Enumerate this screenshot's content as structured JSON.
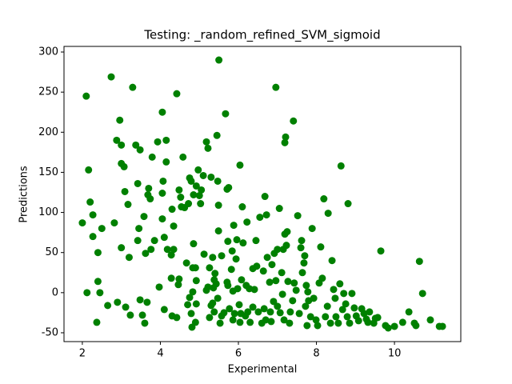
{
  "chart_data": {
    "type": "scatter",
    "title": "Testing: _random_refined_SVM_sigmoid",
    "x_label": "Experimental",
    "y_label": "Predictions",
    "color": "#008000",
    "grid": false,
    "xlim": [
      1.53,
      11.7
    ],
    "ylim": [
      -61,
      307
    ],
    "xticks": [
      2,
      4,
      6,
      8,
      10
    ],
    "yticks": [
      -50,
      0,
      50,
      100,
      150,
      200,
      250,
      300
    ],
    "x": [
      2.0,
      2.1,
      2.16,
      2.2,
      2.27,
      2.27,
      2.12,
      2.4,
      2.4,
      2.37,
      2.45,
      2.5,
      2.65,
      2.74,
      2.82,
      2.88,
      2.9,
      2.96,
      3.0,
      3.0,
      3.07,
      3.0,
      3.09,
      3.11,
      3.17,
      3.23,
      3.2,
      3.29,
      3.37,
      3.42,
      3.48,
      3.48,
      3.42,
      3.45,
      3.54,
      3.58,
      3.6,
      3.62,
      3.68,
      3.74,
      3.66,
      3.7,
      3.76,
      3.79,
      3.85,
      3.93,
      3.97,
      4.05,
      4.05,
      4.05,
      4.07,
      4.1,
      4.1,
      4.15,
      4.18,
      4.15,
      4.28,
      4.3,
      4.28,
      4.3,
      4.34,
      4.34,
      4.42,
      4.42,
      4.48,
      4.52,
      4.46,
      4.48,
      4.54,
      4.58,
      4.62,
      4.67,
      4.7,
      4.75,
      4.72,
      4.79,
      4.81,
      4.79,
      4.75,
      4.83,
      4.85,
      4.85,
      4.83,
      4.92,
      4.92,
      4.9,
      4.9,
      4.92,
      4.97,
      5.0,
      5.03,
      5.05,
      5.1,
      5.12,
      5.18,
      5.18,
      5.22,
      5.22,
      5.26,
      5.26,
      5.3,
      5.3,
      5.34,
      5.34,
      5.36,
      5.38,
      5.38,
      5.4,
      5.43,
      5.45,
      5.47,
      5.47,
      5.49,
      5.49,
      5.5,
      5.53,
      5.57,
      5.57,
      5.63,
      5.67,
      5.71,
      5.71,
      5.73,
      5.73,
      5.75,
      5.77,
      5.82,
      5.84,
      5.86,
      5.88,
      5.86,
      5.9,
      5.94,
      5.96,
      5.98,
      6.02,
      6.04,
      6.04,
      6.06,
      6.08,
      6.1,
      6.12,
      6.18,
      6.2,
      6.22,
      6.24,
      6.28,
      6.3,
      6.37,
      6.37,
      6.41,
      6.45,
      6.47,
      6.51,
      6.55,
      6.6,
      6.64,
      6.66,
      6.68,
      6.7,
      6.72,
      6.74,
      6.8,
      6.82,
      6.84,
      6.86,
      6.9,
      6.92,
      6.96,
      6.96,
      7.0,
      7.0,
      7.05,
      7.07,
      7.11,
      7.13,
      7.15,
      7.17,
      7.19,
      7.19,
      7.21,
      7.23,
      7.25,
      7.27,
      7.31,
      7.33,
      7.39,
      7.41,
      7.43,
      7.48,
      7.52,
      7.56,
      7.6,
      7.62,
      7.64,
      7.68,
      7.7,
      7.72,
      7.74,
      7.76,
      7.78,
      7.8,
      7.85,
      7.89,
      7.93,
      7.99,
      8.03,
      8.07,
      8.11,
      8.15,
      8.19,
      8.23,
      8.28,
      8.3,
      8.36,
      8.4,
      8.44,
      8.48,
      8.5,
      8.56,
      8.6,
      8.63,
      8.67,
      8.7,
      8.75,
      8.79,
      8.81,
      8.85,
      8.91,
      8.97,
      9.02,
      9.08,
      9.16,
      9.22,
      9.28,
      9.32,
      9.36,
      9.47,
      9.51,
      9.57,
      9.65,
      9.77,
      9.84,
      10.0,
      10.21,
      10.37,
      10.51,
      10.55,
      10.64,
      10.72,
      10.92,
      11.15,
      11.23
    ],
    "values": [
      87,
      245,
      153,
      113,
      97,
      70,
      0,
      50,
      14,
      -37,
      0,
      80,
      -16,
      269,
      87,
      190,
      -12,
      215,
      184,
      161,
      157,
      56,
      126,
      -18,
      110,
      -28,
      44,
      256,
      184,
      136,
      178,
      -9,
      65,
      80,
      -28,
      95,
      -38,
      49,
      122,
      117,
      -12,
      130,
      54,
      169,
      65,
      188,
      7,
      225,
      124,
      92,
      139,
      -21,
      69,
      190,
      54,
      163,
      47,
      104,
      18,
      -29,
      83,
      54,
      248,
      -31,
      128,
      119,
      10,
      17,
      107,
      169,
      106,
      37,
      -15,
      143,
      111,
      139,
      -43,
      -26,
      -6,
      31,
      61,
      122,
      1,
      15,
      -14,
      -37,
      31,
      133,
      153,
      121,
      111,
      128,
      146,
      48,
      188,
      3,
      180,
      7,
      31,
      -31,
      144,
      -16,
      44,
      -13,
      6,
      16,
      -24,
      24,
      11,
      196,
      139,
      -7,
      109,
      77,
      290,
      -38,
      -29,
      46,
      -25,
      223,
      129,
      13,
      9,
      64,
      131,
      -20,
      29,
      52,
      -34,
      84,
      2,
      -26,
      42,
      66,
      5,
      -15,
      159,
      -37,
      -26,
      16,
      107,
      62,
      -29,
      9,
      88,
      -24,
      5,
      -37,
      -18,
      30,
      4,
      65,
      33,
      -24,
      94,
      -38,
      27,
      -20,
      120,
      -34,
      97,
      44,
      13,
      -24,
      -36,
      35,
      -11,
      49,
      256,
      15,
      -17,
      54,
      105,
      -25,
      25,
      -2,
      54,
      -34,
      187,
      73,
      194,
      59,
      76,
      14,
      -38,
      -24,
      -10,
      214,
      12,
      3,
      96,
      -26,
      56,
      65,
      25,
      37,
      46,
      -17,
      9,
      -41,
      1,
      -10,
      -30,
      80,
      -7,
      -34,
      -41,
      12,
      57,
      18,
      117,
      -30,
      -17,
      99,
      -38,
      40,
      4,
      -7,
      -30,
      -38,
      11,
      158,
      -21,
      -1,
      -14,
      -30,
      111,
      -38,
      -1,
      -19,
      -29,
      -35,
      -20,
      -26,
      -33,
      -37,
      -24,
      -38,
      -32,
      -31,
      52,
      -41,
      -44,
      -42,
      -37,
      -24,
      -38,
      -41,
      39,
      -1,
      -34,
      -42,
      -42
    ]
  }
}
